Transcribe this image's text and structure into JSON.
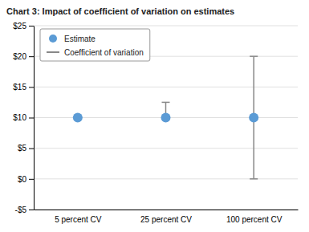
{
  "chart_data": {
    "type": "scatter",
    "title": "Chart 3: Impact of coefficient of variation on estimates",
    "categories": [
      "5 percent CV",
      "25 percent CV",
      "100 percent CV"
    ],
    "series": [
      {
        "name": "Estimate",
        "color": "#5B9BD5",
        "marker": "circle",
        "values": [
          10,
          10,
          10
        ],
        "error_lower": [
          10,
          10,
          0
        ],
        "error_upper": [
          10,
          12.5,
          20
        ],
        "error_name": "Coefficient of variation"
      }
    ],
    "ylim": [
      -5,
      25
    ],
    "yticks": [
      {
        "value": -5,
        "label": "-$5"
      },
      {
        "value": 0,
        "label": "$0"
      },
      {
        "value": 5,
        "label": "$5"
      },
      {
        "value": 10,
        "label": "$10"
      },
      {
        "value": 15,
        "label": "$15"
      },
      {
        "value": 20,
        "label": "$20"
      },
      {
        "value": 25,
        "label": "$25"
      }
    ],
    "grid": true,
    "legend": "upper left"
  }
}
